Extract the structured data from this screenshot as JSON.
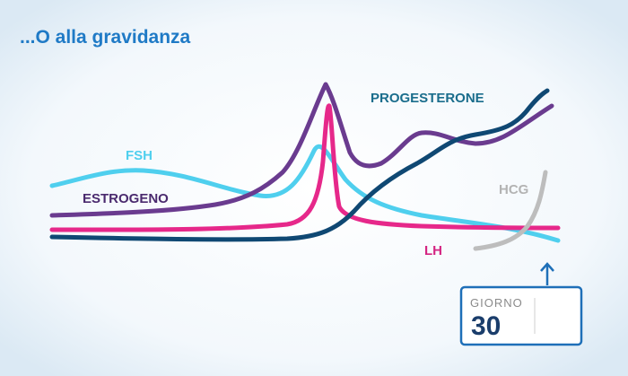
{
  "header": {
    "title": "...O alla gravidanza"
  },
  "labels": {
    "fsh": "FSH",
    "estrogen": "ESTROGENO",
    "progesterone": "PROGESTERONE",
    "hcg": "HCG",
    "lh": "LH"
  },
  "day_box": {
    "caption": "GIORNO",
    "day": "30"
  }
}
